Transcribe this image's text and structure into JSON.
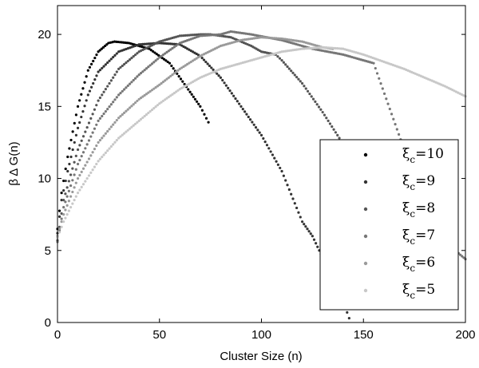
{
  "chart_data": {
    "type": "scatter",
    "title": "",
    "xlabel": "Cluster Size (n)",
    "ylabel": "β Δ G(n)",
    "xlim": [
      0,
      200
    ],
    "ylim": [
      0,
      22
    ],
    "xticks": [
      0,
      50,
      100,
      150,
      200
    ],
    "yticks": [
      0,
      5,
      10,
      15,
      20
    ],
    "grid": false,
    "legend": {
      "position": "lower-right"
    },
    "series": [
      {
        "name": "ξc=10",
        "label_main": "ξ",
        "label_sub": "c",
        "label_value": "=10",
        "color": "#000000",
        "points": [
          [
            0,
            6.5
          ],
          [
            2,
            9
          ],
          [
            5,
            11.5
          ],
          [
            10,
            15
          ],
          [
            15,
            17.5
          ],
          [
            20,
            18.8
          ],
          [
            25,
            19.4
          ],
          [
            28,
            19.5
          ],
          [
            35,
            19.4
          ],
          [
            45,
            19
          ],
          [
            55,
            18
          ],
          [
            65,
            16
          ],
          [
            70,
            15
          ],
          [
            74,
            13.9
          ]
        ]
      },
      {
        "name": "ξc=9",
        "label_main": "ξ",
        "label_sub": "c",
        "label_value": "=9",
        "color": "#333333",
        "points": [
          [
            0,
            6.2
          ],
          [
            2,
            8.5
          ],
          [
            5,
            10.5
          ],
          [
            10,
            13.5
          ],
          [
            15,
            15.8
          ],
          [
            20,
            17.4
          ],
          [
            30,
            18.8
          ],
          [
            40,
            19.3
          ],
          [
            50,
            19.4
          ],
          [
            60,
            19.3
          ],
          [
            70,
            18.5
          ],
          [
            80,
            17
          ],
          [
            90,
            15
          ],
          [
            100,
            13
          ],
          [
            110,
            10.5
          ],
          [
            120,
            7
          ],
          [
            125,
            6
          ],
          [
            130,
            4.5
          ],
          [
            135,
            3
          ],
          [
            140,
            1.5
          ],
          [
            143,
            0.3
          ]
        ]
      },
      {
        "name": "ξc=8",
        "label_main": "ξ",
        "label_sub": "c",
        "label_value": "=8",
        "color": "#555555",
        "points": [
          [
            0,
            5.7
          ],
          [
            3,
            8.5
          ],
          [
            10,
            12
          ],
          [
            20,
            15.4
          ],
          [
            30,
            17.6
          ],
          [
            40,
            18.8
          ],
          [
            50,
            19.5
          ],
          [
            60,
            19.9
          ],
          [
            70,
            20
          ],
          [
            75,
            20
          ],
          [
            85,
            19.8
          ],
          [
            95,
            19.2
          ],
          [
            100,
            18.8
          ],
          [
            107,
            18.6
          ],
          [
            110,
            18.2
          ],
          [
            120,
            16.6
          ],
          [
            130,
            14.6
          ],
          [
            140,
            12.4
          ],
          [
            150,
            9.8
          ],
          [
            160,
            7.2
          ],
          [
            170,
            5
          ],
          [
            175,
            4.3
          ]
        ]
      },
      {
        "name": "ξc=7",
        "label_main": "ξ",
        "label_sub": "c",
        "label_value": "=7",
        "color": "#777777",
        "points": [
          [
            0,
            5.6
          ],
          [
            3,
            8
          ],
          [
            10,
            11
          ],
          [
            20,
            14
          ],
          [
            30,
            15.8
          ],
          [
            40,
            17.2
          ],
          [
            50,
            18.4
          ],
          [
            60,
            19.4
          ],
          [
            70,
            19.9
          ],
          [
            80,
            20
          ],
          [
            85,
            20.2
          ],
          [
            95,
            20
          ],
          [
            110,
            19.6
          ],
          [
            125,
            19
          ],
          [
            140,
            18.6
          ],
          [
            155,
            18
          ],
          [
            170,
            12
          ],
          [
            185,
            8
          ],
          [
            195,
            5
          ],
          [
            200,
            4.4
          ]
        ]
      },
      {
        "name": "ξc=6",
        "label_main": "ξ",
        "label_sub": "c",
        "label_value": "=6",
        "color": "#9a9a9a",
        "points": [
          [
            0,
            6
          ],
          [
            3,
            7.5
          ],
          [
            10,
            10
          ],
          [
            20,
            12.5
          ],
          [
            30,
            14.2
          ],
          [
            40,
            15.5
          ],
          [
            50,
            16.5
          ],
          [
            60,
            17.6
          ],
          [
            70,
            18.5
          ],
          [
            80,
            19.2
          ],
          [
            90,
            19.6
          ],
          [
            100,
            19.8
          ],
          [
            110,
            19.7
          ],
          [
            120,
            19.5
          ],
          [
            130,
            19.1
          ],
          [
            135,
            19
          ]
        ]
      },
      {
        "name": "ξc=5",
        "label_main": "ξ",
        "label_sub": "c",
        "label_value": "=5",
        "color": "#c8c8c8",
        "points": [
          [
            0,
            5.9
          ],
          [
            3,
            7
          ],
          [
            10,
            9
          ],
          [
            20,
            11.2
          ],
          [
            30,
            12.8
          ],
          [
            40,
            14
          ],
          [
            50,
            15.2
          ],
          [
            60,
            16.2
          ],
          [
            70,
            17
          ],
          [
            80,
            17.6
          ],
          [
            90,
            18
          ],
          [
            100,
            18.4
          ],
          [
            110,
            18.8
          ],
          [
            120,
            19
          ],
          [
            130,
            19.1
          ],
          [
            140,
            19
          ],
          [
            150,
            18.6
          ],
          [
            160,
            18.1
          ],
          [
            170,
            17.6
          ],
          [
            180,
            17
          ],
          [
            190,
            16.4
          ],
          [
            200,
            15.7
          ]
        ]
      }
    ]
  }
}
